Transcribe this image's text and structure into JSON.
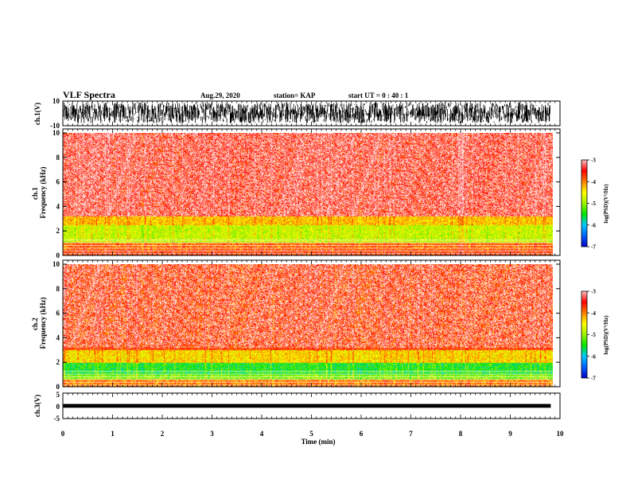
{
  "header": {
    "title": "VLF Spectra",
    "date": "Aug.29, 2020",
    "station": "station= KAP",
    "start": "start  UT =   0  : 40 : 1"
  },
  "colors": {
    "colormap": [
      "#0000c8",
      "#0060ff",
      "#00c8ff",
      "#00e600",
      "#a0f000",
      "#ffff00",
      "#ff8000",
      "#ff0000",
      "#ffc0c0",
      "#ffffff"
    ],
    "waveform": "#000000"
  },
  "chart_data": [
    {
      "type": "line",
      "panel": "ch1-waveform",
      "ylabel": "ch.1(V)",
      "ylim": [
        -10,
        10
      ],
      "yticks": [
        "10",
        "-10"
      ],
      "trace_range": [
        -8,
        9
      ]
    },
    {
      "type": "heatmap",
      "panel": "ch1-spectrogram",
      "ylabel": "ch.1\nFrequency (kHz)",
      "ylim": [
        0,
        10
      ],
      "yticks": [
        "0",
        "2",
        "4",
        "6",
        "8",
        "10"
      ],
      "xlim": [
        0,
        9.85
      ],
      "log_psd_range": [
        -7,
        -3
      ],
      "bands": [
        {
          "f_low": 0,
          "f_high": 0.5,
          "log_psd": -3.6
        },
        {
          "f_low": 0.5,
          "f_high": 1.1,
          "log_psd": -3.8
        },
        {
          "f_low": 1.1,
          "f_high": 2.5,
          "log_psd": -4.7
        },
        {
          "f_low": 2.5,
          "f_high": 3.2,
          "log_psd": -4.2
        },
        {
          "f_low": 3.2,
          "f_high": 10,
          "log_psd": -3.4
        }
      ],
      "colorbar": {
        "label": "log(PSD)(V²/Hz)",
        "ticks": [
          "-3",
          "-4",
          "-5",
          "-6",
          "-7"
        ]
      }
    },
    {
      "type": "heatmap",
      "panel": "ch2-spectrogram",
      "ylabel": "ch.2\nFrequency (kHz)",
      "ylim": [
        0,
        10
      ],
      "yticks": [
        "0",
        "2",
        "4",
        "6",
        "8",
        "10"
      ],
      "xlim": [
        0,
        9.85
      ],
      "log_psd_range": [
        -7,
        -3
      ],
      "bands": [
        {
          "f_low": 0,
          "f_high": 0.6,
          "log_psd": -3.9
        },
        {
          "f_low": 0.6,
          "f_high": 1.0,
          "log_psd": -5.0
        },
        {
          "f_low": 1.0,
          "f_high": 2.0,
          "log_psd": -5.4
        },
        {
          "f_low": 2.0,
          "f_high": 3.0,
          "log_psd": -4.3
        },
        {
          "f_low": 3.0,
          "f_high": 10,
          "log_psd": -3.6
        }
      ],
      "colorbar": {
        "label": "log(PSD)(V²/Hz)",
        "ticks": [
          "-3",
          "-4",
          "-5",
          "-6",
          "-7"
        ]
      }
    },
    {
      "type": "line",
      "panel": "ch3-waveform",
      "ylabel": "ch.3(V)",
      "ylim": [
        -5,
        5
      ],
      "yticks": [
        "5",
        "0",
        "-5"
      ],
      "trace_range": [
        -0.5,
        0.5
      ]
    }
  ],
  "xaxis": {
    "label": "Time  (min)",
    "xlim": [
      0,
      10
    ],
    "ticks": [
      "0",
      "1",
      "2",
      "3",
      "4",
      "5",
      "6",
      "7",
      "8",
      "9",
      "10"
    ]
  }
}
